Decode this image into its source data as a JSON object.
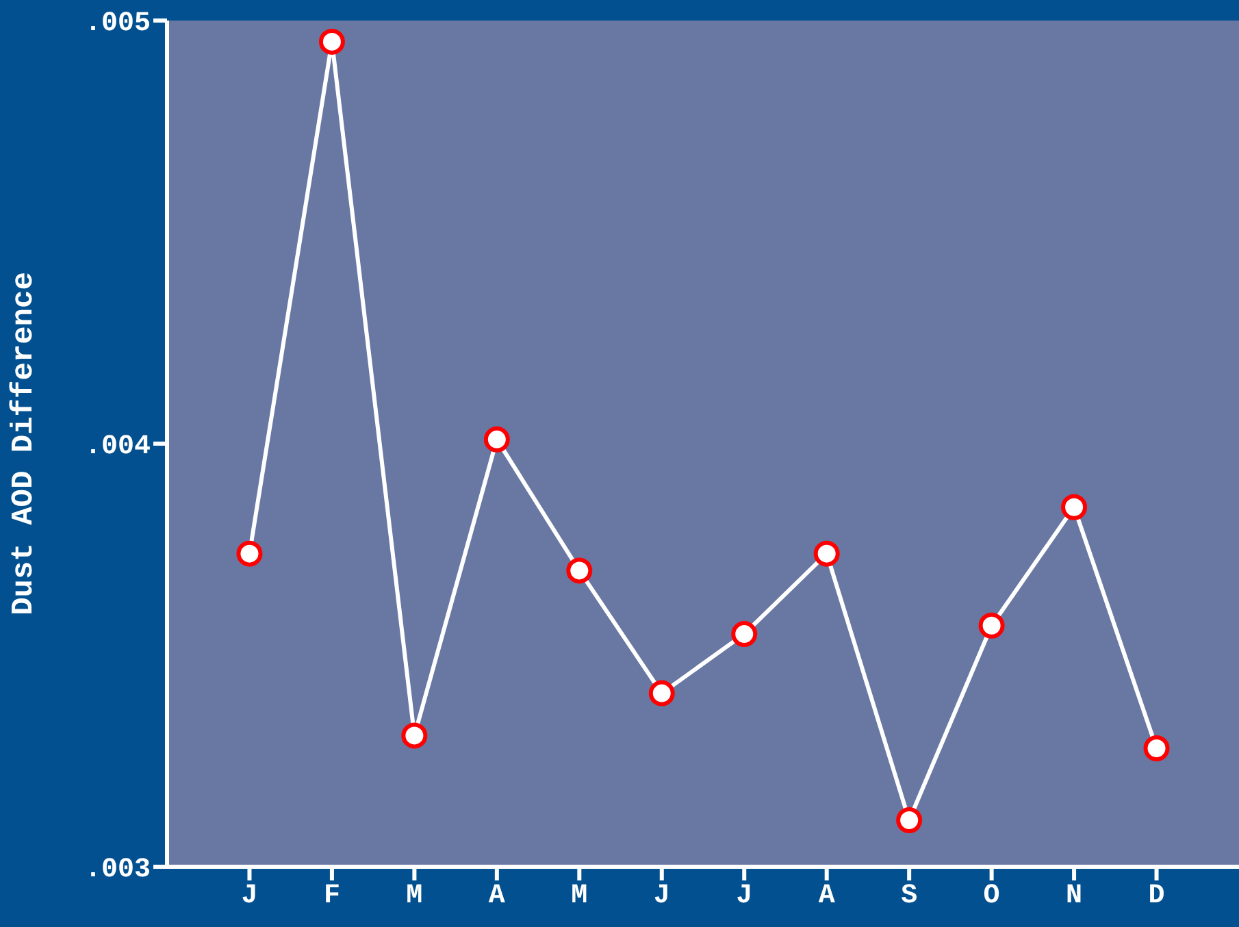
{
  "chart_data": {
    "type": "line",
    "ylabel": "Dust AOD Difference",
    "categories": [
      "J",
      "F",
      "M",
      "A",
      "M",
      "J",
      "J",
      "A",
      "S",
      "O",
      "N",
      "D"
    ],
    "series": [
      {
        "color": "#ffffff",
        "values": [
          0.00374,
          0.00495,
          0.00331,
          0.00401,
          0.0037,
          0.00341,
          0.00355,
          0.00374,
          0.00311,
          0.00357,
          0.00385,
          0.00328
        ]
      }
    ],
    "ylim": [
      0.003,
      0.005
    ],
    "yticks": [
      {
        "value": 0.003,
        "label": ".003"
      },
      {
        "value": 0.004,
        "label": ".004"
      },
      {
        "value": 0.005,
        "label": ".005"
      }
    ],
    "marker": "circle",
    "line_style": "solid",
    "legend": false
  }
}
